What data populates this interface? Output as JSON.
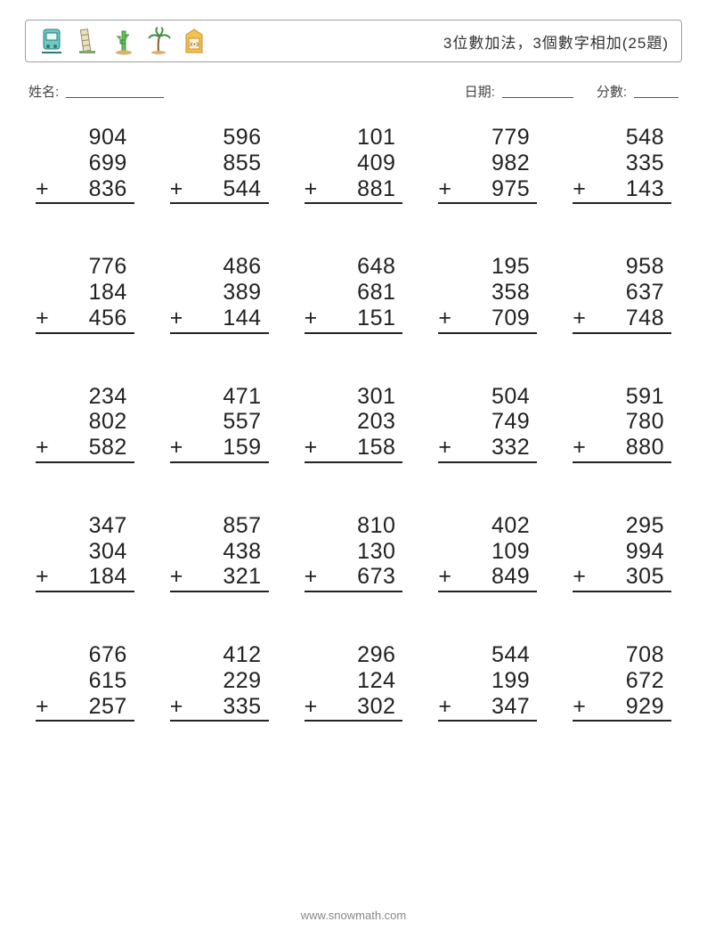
{
  "header": {
    "title": "3位數加法，3個數字相加(25題)",
    "icons": [
      "tram-icon",
      "tower-icon",
      "cactus-icon",
      "palm-icon",
      "book-icon"
    ]
  },
  "info": {
    "name_label": "姓名:",
    "date_label": "日期:",
    "score_label": "分數:"
  },
  "layout": {
    "rows": 5,
    "cols": 5
  },
  "operator": "+",
  "problems": [
    {
      "a": 904,
      "b": 699,
      "c": 836
    },
    {
      "a": 596,
      "b": 855,
      "c": 544
    },
    {
      "a": 101,
      "b": 409,
      "c": 881
    },
    {
      "a": 779,
      "b": 982,
      "c": 975
    },
    {
      "a": 548,
      "b": 335,
      "c": 143
    },
    {
      "a": 776,
      "b": 184,
      "c": 456
    },
    {
      "a": 486,
      "b": 389,
      "c": 144
    },
    {
      "a": 648,
      "b": 681,
      "c": 151
    },
    {
      "a": 195,
      "b": 358,
      "c": 709
    },
    {
      "a": 958,
      "b": 637,
      "c": 748
    },
    {
      "a": 234,
      "b": 802,
      "c": 582
    },
    {
      "a": 471,
      "b": 557,
      "c": 159
    },
    {
      "a": 301,
      "b": 203,
      "c": 158
    },
    {
      "a": 504,
      "b": 749,
      "c": 332
    },
    {
      "a": 591,
      "b": 780,
      "c": 880
    },
    {
      "a": 347,
      "b": 304,
      "c": 184
    },
    {
      "a": 857,
      "b": 438,
      "c": 321
    },
    {
      "a": 810,
      "b": 130,
      "c": 673
    },
    {
      "a": 402,
      "b": 109,
      "c": 849
    },
    {
      "a": 295,
      "b": 994,
      "c": 305
    },
    {
      "a": 676,
      "b": 615,
      "c": 257
    },
    {
      "a": 412,
      "b": 229,
      "c": 335
    },
    {
      "a": 296,
      "b": 124,
      "c": 302
    },
    {
      "a": 544,
      "b": 199,
      "c": 347
    },
    {
      "a": 708,
      "b": 672,
      "c": 929
    }
  ],
  "footer": {
    "text": "www.snowmath.com"
  },
  "colors": {
    "page_bg": "#ffffff",
    "border": "#9aa0a0",
    "text": "#222222",
    "muted": "#888888"
  },
  "typography": {
    "title_fontsize": 17,
    "info_fontsize": 15,
    "number_fontsize": 25,
    "footer_fontsize": 13
  }
}
